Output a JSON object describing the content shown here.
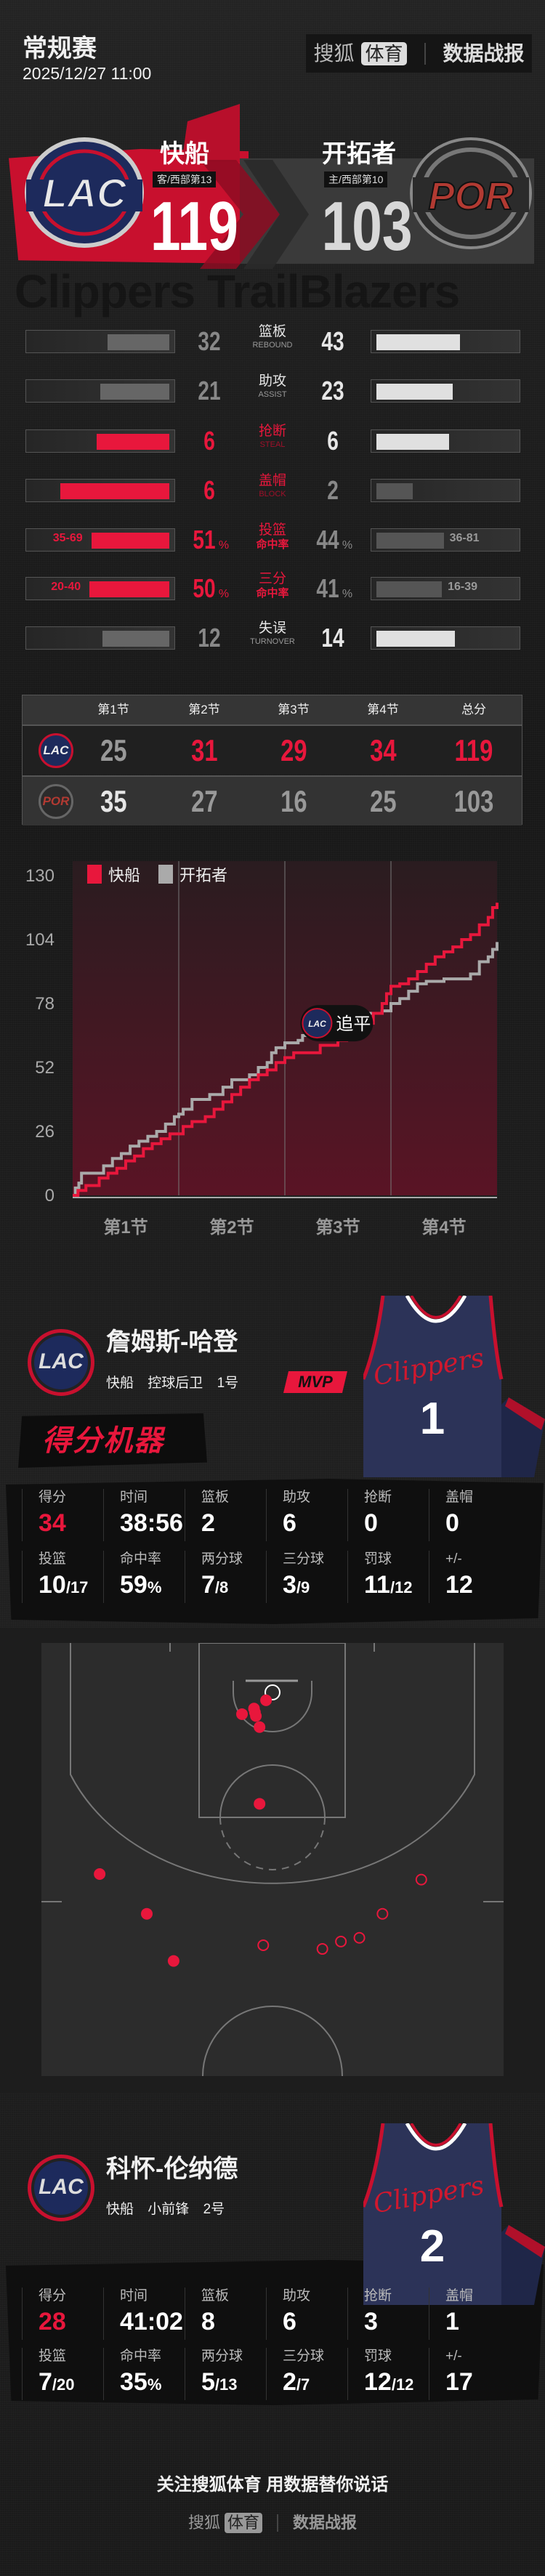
{
  "header": {
    "title": "常规赛",
    "datetime": "2025/12/27 11:00"
  },
  "brand": {
    "name": "搜狐",
    "pill": "体育",
    "report": "数据战报"
  },
  "colors": {
    "accent": "#e8173c",
    "home_bar": "#e0e0e0",
    "muted": "#777777",
    "lac_navy": "#1d2a5c",
    "por_red": "#b23a32"
  },
  "away": {
    "logo": "LAC",
    "name": "快船",
    "rank": "客/西部第13",
    "score": "119",
    "watermark": "Clippers"
  },
  "home": {
    "logo": "POR",
    "name": "开拓者",
    "rank": "主/西部第10",
    "score": "103",
    "watermark": "TrailBlazers"
  },
  "team_stats": [
    {
      "cn": "篮板",
      "en": "REBOUND",
      "left": "32",
      "right": "43",
      "lv": 32,
      "rv": 43,
      "leader": "right"
    },
    {
      "cn": "助攻",
      "en": "ASSIST",
      "left": "21",
      "right": "23",
      "lv": 21,
      "rv": 23,
      "leader": "right"
    },
    {
      "cn": "抢断",
      "en": "STEAL",
      "left": "6",
      "right": "6",
      "lv": 6,
      "rv": 6,
      "leader": "left"
    },
    {
      "cn": "盖帽",
      "en": "BLOCK",
      "left": "6",
      "right": "2",
      "lv": 6,
      "rv": 2,
      "leader": "left"
    },
    {
      "cn": "投篮",
      "en": "命中率",
      "left": "51",
      "right": "44",
      "lv": 51,
      "rv": 44,
      "leader": "left",
      "unit": "%",
      "left_made": "35-69",
      "right_made": "36-81"
    },
    {
      "cn": "三分",
      "en": "命中率",
      "left": "50",
      "right": "41",
      "lv": 50,
      "rv": 41,
      "leader": "left",
      "unit": "%",
      "left_made": "20-40",
      "right_made": "16-39"
    },
    {
      "cn": "失误",
      "en": "TURNOVER",
      "left": "12",
      "right": "14",
      "lv": 12,
      "rv": 14,
      "leader": "right"
    }
  ],
  "quarters": {
    "headers": [
      "第1节",
      "第2节",
      "第3节",
      "第4节",
      "总分"
    ],
    "rows": [
      {
        "team": "LAC",
        "values": [
          "25",
          "31",
          "29",
          "34",
          "119"
        ],
        "highlight": [
          false,
          true,
          true,
          true,
          true
        ]
      },
      {
        "team": "POR",
        "values": [
          "35",
          "27",
          "16",
          "25",
          "103"
        ],
        "highlight": [
          true,
          false,
          false,
          false,
          false
        ]
      }
    ]
  },
  "chart_data": {
    "type": "line",
    "step": true,
    "categories": [
      "第1节",
      "第2节",
      "第3节",
      "第4节"
    ],
    "yticks": [
      "0",
      "26",
      "52",
      "78",
      "104",
      "130"
    ],
    "ylim": [
      0,
      130
    ],
    "xlim": [
      0,
      48
    ],
    "legend_position": "top-left",
    "annotation": {
      "team": "LAC",
      "text": "追平",
      "x": 32.5,
      "y": 70
    },
    "series": [
      {
        "name": "快船",
        "color": "#e8173c",
        "points": [
          [
            0,
            0
          ],
          [
            0.6,
            0
          ],
          [
            0.6,
            2
          ],
          [
            1.5,
            4
          ],
          [
            3,
            7
          ],
          [
            4,
            9
          ],
          [
            5,
            11
          ],
          [
            6,
            14
          ],
          [
            7,
            16
          ],
          [
            8,
            19
          ],
          [
            9,
            21
          ],
          [
            10,
            23
          ],
          [
            11,
            25
          ],
          [
            12.5,
            28
          ],
          [
            13.5,
            30
          ],
          [
            15,
            32
          ],
          [
            16,
            35
          ],
          [
            17,
            38
          ],
          [
            18,
            41
          ],
          [
            19,
            44
          ],
          [
            20,
            47
          ],
          [
            21,
            49
          ],
          [
            22,
            51
          ],
          [
            23,
            54
          ],
          [
            24,
            56
          ],
          [
            25,
            58
          ],
          [
            27,
            58
          ],
          [
            28,
            61
          ],
          [
            30,
            63
          ],
          [
            31,
            66
          ],
          [
            32,
            70
          ],
          [
            33.5,
            70
          ],
          [
            34,
            74
          ],
          [
            35,
            78
          ],
          [
            35.5,
            82
          ],
          [
            36,
            85
          ],
          [
            37,
            86
          ],
          [
            38,
            88
          ],
          [
            39,
            91
          ],
          [
            40,
            94
          ],
          [
            41,
            97
          ],
          [
            42,
            99
          ],
          [
            43,
            101
          ],
          [
            44,
            104
          ],
          [
            45,
            106
          ],
          [
            46,
            110
          ],
          [
            47,
            113
          ],
          [
            47.5,
            117
          ],
          [
            48,
            119
          ]
        ]
      },
      {
        "name": "开拓者",
        "color": "#aaaaaa",
        "points": [
          [
            0,
            0
          ],
          [
            0.3,
            3
          ],
          [
            0.7,
            5
          ],
          [
            1,
            9
          ],
          [
            3,
            9
          ],
          [
            3.5,
            12
          ],
          [
            4.5,
            15
          ],
          [
            5.5,
            17
          ],
          [
            6.5,
            20
          ],
          [
            7.5,
            22
          ],
          [
            8.5,
            24
          ],
          [
            9.5,
            26
          ],
          [
            10.5,
            29
          ],
          [
            11.5,
            32
          ],
          [
            12,
            33
          ],
          [
            12.5,
            35
          ],
          [
            13.5,
            39
          ],
          [
            15.5,
            41
          ],
          [
            17,
            44
          ],
          [
            18,
            47
          ],
          [
            20,
            49
          ],
          [
            21,
            52
          ],
          [
            22,
            54
          ],
          [
            22.5,
            58
          ],
          [
            23,
            60
          ],
          [
            24,
            62
          ],
          [
            25.5,
            63
          ],
          [
            26,
            65
          ],
          [
            27,
            68
          ],
          [
            28,
            70
          ],
          [
            32.5,
            70
          ],
          [
            33,
            74
          ],
          [
            35,
            75
          ],
          [
            36,
            78
          ],
          [
            37,
            80
          ],
          [
            38,
            83
          ],
          [
            39,
            86
          ],
          [
            40,
            87
          ],
          [
            42,
            88
          ],
          [
            44,
            88
          ],
          [
            45,
            90
          ],
          [
            46,
            95
          ],
          [
            47,
            97
          ],
          [
            47.5,
            100
          ],
          [
            48,
            103
          ]
        ]
      }
    ]
  },
  "players": [
    {
      "name": "詹姆斯-哈登",
      "team": "快船",
      "position": "控球后卫",
      "number_label": "1号",
      "jersey_number": "1",
      "jersey_text": "Clippers",
      "badge": "MVP",
      "tag": "得分机器",
      "stats": [
        {
          "label": "得分",
          "value": "34",
          "hl": true
        },
        {
          "label": "时间",
          "value": "38:56"
        },
        {
          "label": "篮板",
          "value": "2"
        },
        {
          "label": "助攻",
          "value": "6"
        },
        {
          "label": "抢断",
          "value": "0"
        },
        {
          "label": "盖帽",
          "value": "0"
        },
        {
          "label": "投篮",
          "value": "10",
          "sub": "/17"
        },
        {
          "label": "命中率",
          "value": "59",
          "sub": "%"
        },
        {
          "label": "两分球",
          "value": "7",
          "sub": "/8"
        },
        {
          "label": "三分球",
          "value": "3",
          "sub": "/9"
        },
        {
          "label": "罚球",
          "value": "11",
          "sub": "/12"
        },
        {
          "label": "+/-",
          "value": "12"
        }
      ]
    },
    {
      "name": "科怀-伦纳德",
      "team": "快船",
      "position": "小前锋",
      "number_label": "2号",
      "jersey_number": "2",
      "jersey_text": "Clippers",
      "stats": [
        {
          "label": "得分",
          "value": "28",
          "hl": true
        },
        {
          "label": "时间",
          "value": "41:02"
        },
        {
          "label": "篮板",
          "value": "8"
        },
        {
          "label": "助攻",
          "value": "6"
        },
        {
          "label": "抢断",
          "value": "3"
        },
        {
          "label": "盖帽",
          "value": "1"
        },
        {
          "label": "投篮",
          "value": "7",
          "sub": "/20"
        },
        {
          "label": "命中率",
          "value": "35",
          "sub": "%"
        },
        {
          "label": "两分球",
          "value": "5",
          "sub": "/13"
        },
        {
          "label": "三分球",
          "value": "2",
          "sub": "/7"
        },
        {
          "label": "罚球",
          "value": "12",
          "sub": "/12"
        },
        {
          "label": "+/-",
          "value": "17"
        }
      ]
    }
  ],
  "shot_chart": {
    "units": "ft",
    "shots": [
      {
        "x": 24.3,
        "y": 6.2,
        "made": true
      },
      {
        "x": 23.0,
        "y": 7.1,
        "made": true
      },
      {
        "x": 23.1,
        "y": 7.5,
        "made": true
      },
      {
        "x": 23.2,
        "y": 7.9,
        "made": true
      },
      {
        "x": 21.7,
        "y": 7.7,
        "made": true
      },
      {
        "x": 23.6,
        "y": 9.1,
        "made": true
      },
      {
        "x": 23.6,
        "y": 17.4,
        "made": true
      },
      {
        "x": 6.3,
        "y": 25.0,
        "made": true
      },
      {
        "x": 11.4,
        "y": 29.3,
        "made": true
      },
      {
        "x": 14.3,
        "y": 34.4,
        "made": true
      },
      {
        "x": 41.1,
        "y": 25.6,
        "made": false
      },
      {
        "x": 36.9,
        "y": 29.3,
        "made": false
      },
      {
        "x": 34.4,
        "y": 31.9,
        "made": false
      },
      {
        "x": 32.4,
        "y": 32.3,
        "made": false
      },
      {
        "x": 30.4,
        "y": 33.1,
        "made": false
      },
      {
        "x": 24.0,
        "y": 32.7,
        "made": false
      }
    ]
  },
  "footer": {
    "slogan": "关注搜狐体育 用数据替你说话",
    "brand": "搜狐",
    "pill": "体育",
    "report": "数据战报"
  }
}
